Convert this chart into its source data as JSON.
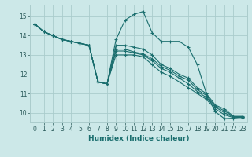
{
  "title": "",
  "xlabel": "Humidex (Indice chaleur)",
  "bg_color": "#cce8e8",
  "grid_color": "#aacccc",
  "line_color": "#1a6e6e",
  "xlim": [
    -0.5,
    23.5
  ],
  "ylim": [
    9.5,
    15.6
  ],
  "yticks": [
    10,
    11,
    12,
    13,
    14,
    15
  ],
  "xticks": [
    0,
    1,
    2,
    3,
    4,
    5,
    6,
    7,
    8,
    9,
    10,
    11,
    12,
    13,
    14,
    15,
    16,
    17,
    18,
    19,
    20,
    21,
    22,
    23
  ],
  "lines": [
    {
      "x": [
        0,
        1,
        2,
        3,
        4,
        5,
        6,
        7,
        8,
        9,
        10,
        11,
        12,
        13,
        14,
        15,
        16,
        17,
        18,
        19,
        20,
        21,
        22,
        23
      ],
      "y": [
        14.6,
        14.2,
        14.0,
        13.8,
        13.7,
        13.6,
        13.5,
        11.6,
        11.5,
        13.8,
        14.8,
        15.1,
        15.25,
        14.15,
        13.7,
        13.7,
        13.7,
        13.4,
        12.5,
        11.0,
        10.05,
        9.7,
        9.72,
        9.8
      ]
    },
    {
      "x": [
        0,
        1,
        2,
        3,
        4,
        5,
        6,
        7,
        8,
        9,
        10,
        11,
        12,
        13,
        14,
        15,
        16,
        17,
        18,
        19,
        20,
        21,
        22,
        23
      ],
      "y": [
        14.6,
        14.2,
        14.0,
        13.8,
        13.7,
        13.6,
        13.5,
        11.6,
        11.5,
        13.0,
        13.0,
        13.0,
        12.9,
        12.5,
        12.1,
        11.9,
        11.6,
        11.3,
        11.0,
        10.7,
        10.2,
        9.9,
        9.75,
        9.75
      ]
    },
    {
      "x": [
        0,
        1,
        2,
        3,
        4,
        5,
        6,
        7,
        8,
        9,
        10,
        11,
        12,
        13,
        14,
        15,
        16,
        17,
        18,
        19,
        20,
        21,
        22,
        23
      ],
      "y": [
        14.6,
        14.2,
        14.0,
        13.8,
        13.7,
        13.6,
        13.5,
        11.6,
        11.5,
        13.2,
        13.2,
        13.1,
        13.0,
        12.7,
        12.3,
        12.1,
        11.8,
        11.5,
        11.1,
        10.8,
        10.3,
        10.0,
        9.78,
        9.78
      ]
    },
    {
      "x": [
        0,
        1,
        2,
        3,
        4,
        5,
        6,
        7,
        8,
        9,
        10,
        11,
        12,
        13,
        14,
        15,
        16,
        17,
        18,
        19,
        20,
        21,
        22,
        23
      ],
      "y": [
        14.6,
        14.2,
        14.0,
        13.8,
        13.7,
        13.6,
        13.5,
        11.6,
        11.5,
        13.3,
        13.3,
        13.15,
        13.05,
        12.8,
        12.4,
        12.2,
        11.9,
        11.7,
        11.2,
        10.9,
        10.35,
        10.1,
        9.8,
        9.8
      ]
    },
    {
      "x": [
        0,
        1,
        2,
        3,
        4,
        5,
        6,
        7,
        8,
        9,
        10,
        11,
        12,
        13,
        14,
        15,
        16,
        17,
        18,
        19,
        20,
        21,
        22,
        23
      ],
      "y": [
        14.6,
        14.2,
        14.0,
        13.8,
        13.7,
        13.6,
        13.5,
        11.6,
        11.5,
        13.5,
        13.5,
        13.4,
        13.3,
        13.0,
        12.5,
        12.3,
        12.0,
        11.8,
        11.3,
        11.0,
        10.4,
        10.2,
        9.82,
        9.82
      ]
    }
  ]
}
